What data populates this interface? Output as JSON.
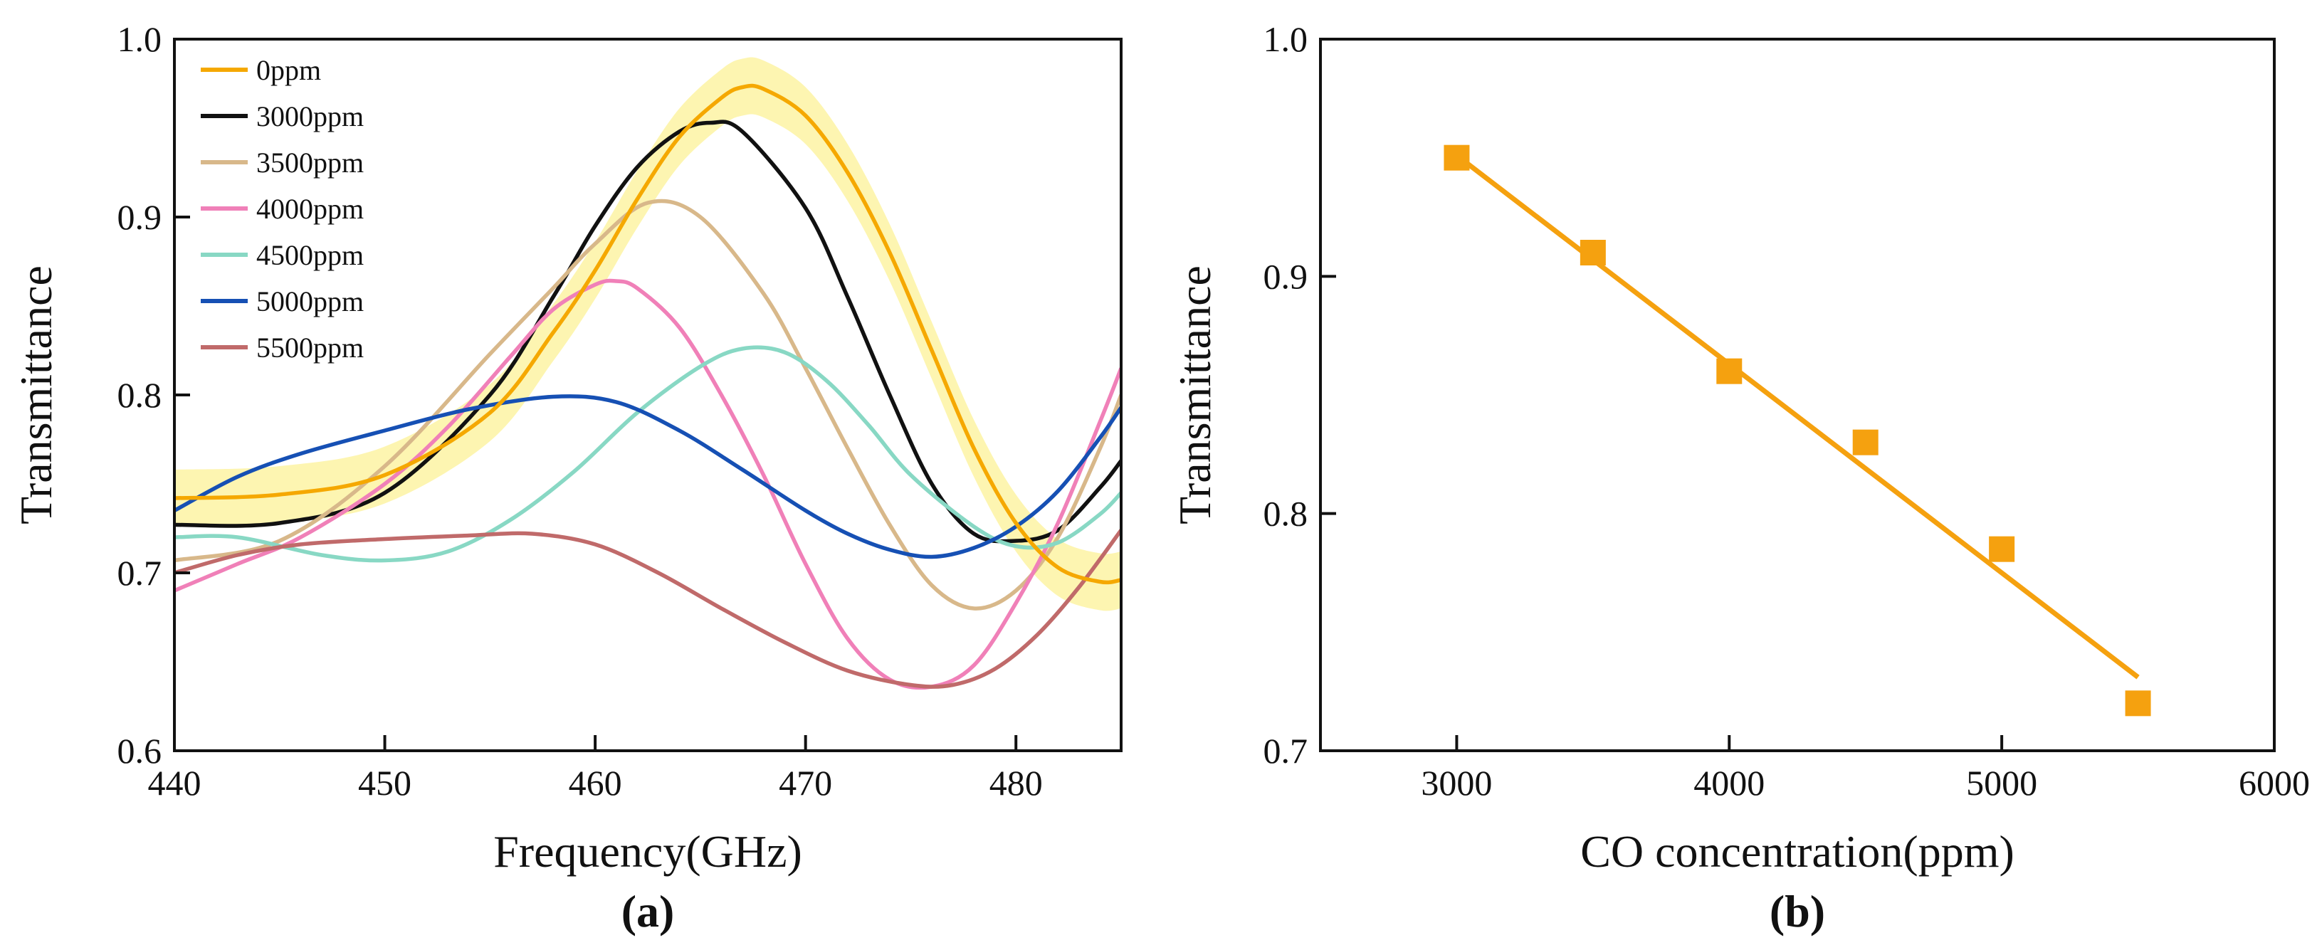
{
  "chart_data": [
    {
      "type": "line",
      "panel_label": "(a)",
      "xlabel": "Frequency(GHz)",
      "ylabel": "Transmittance",
      "xlim": [
        440,
        485
      ],
      "ylim": [
        0.6,
        1.0
      ],
      "xticks": [
        440,
        450,
        460,
        470,
        480
      ],
      "xtick_labels": [
        "440",
        "450",
        "460",
        "470",
        "480"
      ],
      "yticks": [
        0.6,
        0.7,
        0.8,
        0.9,
        1.0
      ],
      "ytick_labels": [
        "0.6",
        "0.7",
        "0.8",
        "0.9",
        "1.0"
      ],
      "legend_position": "top-left",
      "highlight_band": {
        "series": "0ppm",
        "halfwidth": 0.016,
        "color": "#fdf3a3"
      },
      "series": [
        {
          "name": "0ppm",
          "color": "#f5a800",
          "x": [
            440,
            445,
            450,
            455,
            458,
            460,
            462,
            464,
            466,
            467,
            468,
            470,
            472,
            474,
            476,
            478,
            480,
            482,
            484,
            485
          ],
          "y": [
            0.742,
            0.744,
            0.755,
            0.79,
            0.835,
            0.87,
            0.91,
            0.945,
            0.967,
            0.973,
            0.972,
            0.957,
            0.925,
            0.88,
            0.825,
            0.77,
            0.728,
            0.703,
            0.695,
            0.696
          ]
        },
        {
          "name": "3000ppm",
          "color": "#111111",
          "x": [
            440,
            445,
            450,
            455,
            458,
            460,
            462,
            464,
            465.5,
            467,
            470,
            472,
            474,
            476,
            478,
            480,
            482,
            484,
            485
          ],
          "y": [
            0.727,
            0.728,
            0.745,
            0.8,
            0.855,
            0.895,
            0.928,
            0.948,
            0.953,
            0.948,
            0.905,
            0.855,
            0.8,
            0.75,
            0.722,
            0.718,
            0.724,
            0.748,
            0.763
          ]
        },
        {
          "name": "3500ppm",
          "color": "#d8b88a",
          "x": [
            440,
            445,
            450,
            455,
            458,
            460,
            462.5,
            465,
            468,
            470,
            472,
            474,
            476,
            478,
            480,
            482,
            484,
            485
          ],
          "y": [
            0.707,
            0.718,
            0.76,
            0.823,
            0.86,
            0.885,
            0.908,
            0.9,
            0.857,
            0.815,
            0.77,
            0.727,
            0.693,
            0.68,
            0.69,
            0.72,
            0.77,
            0.8
          ]
        },
        {
          "name": "4000ppm",
          "color": "#f080b8",
          "x": [
            440,
            443,
            446,
            450,
            453,
            456,
            458,
            460,
            461,
            462,
            464,
            466,
            468,
            470,
            472,
            474,
            476,
            478,
            480,
            482,
            484,
            485
          ],
          "y": [
            0.69,
            0.705,
            0.72,
            0.75,
            0.782,
            0.822,
            0.848,
            0.862,
            0.864,
            0.86,
            0.838,
            0.8,
            0.755,
            0.705,
            0.663,
            0.64,
            0.636,
            0.648,
            0.683,
            0.728,
            0.785,
            0.815
          ]
        },
        {
          "name": "4500ppm",
          "color": "#88d8c4",
          "x": [
            440,
            443,
            447,
            450,
            453,
            456,
            459,
            462,
            465,
            467,
            469,
            471,
            473,
            475,
            478,
            480,
            482,
            484,
            485
          ],
          "y": [
            0.72,
            0.72,
            0.71,
            0.707,
            0.712,
            0.73,
            0.757,
            0.79,
            0.816,
            0.826,
            0.824,
            0.808,
            0.783,
            0.755,
            0.726,
            0.715,
            0.717,
            0.733,
            0.745
          ]
        },
        {
          "name": "5000ppm",
          "color": "#1650b4",
          "x": [
            440,
            443,
            446,
            450,
            454,
            458,
            461,
            464,
            467,
            470,
            472,
            474,
            476,
            478,
            480,
            482,
            484,
            485
          ],
          "y": [
            0.735,
            0.754,
            0.767,
            0.78,
            0.792,
            0.799,
            0.796,
            0.78,
            0.758,
            0.735,
            0.722,
            0.713,
            0.709,
            0.714,
            0.726,
            0.746,
            0.776,
            0.793
          ]
        },
        {
          "name": "5500ppm",
          "color": "#c06a6a",
          "x": [
            440,
            443,
            446,
            450,
            454,
            457,
            460,
            463,
            466,
            469,
            472,
            475,
            477,
            479,
            481,
            483,
            485
          ],
          "y": [
            0.7,
            0.71,
            0.716,
            0.719,
            0.721,
            0.722,
            0.716,
            0.7,
            0.68,
            0.661,
            0.645,
            0.637,
            0.637,
            0.646,
            0.665,
            0.692,
            0.724
          ]
        }
      ]
    },
    {
      "type": "scatter",
      "panel_label": "(b)",
      "xlabel": "CO concentration(ppm)",
      "ylabel": "Transmittance",
      "xlim": [
        2500,
        6000
      ],
      "ylim": [
        0.7,
        1.0
      ],
      "xticks": [
        3000,
        4000,
        5000,
        6000
      ],
      "xtick_labels": [
        "3000",
        "4000",
        "5000",
        "6000"
      ],
      "yticks": [
        0.7,
        0.8,
        0.9,
        1.0
      ],
      "ytick_labels": [
        "0.7",
        "0.8",
        "0.9",
        "1.0"
      ],
      "color": "#f5a10f",
      "points": {
        "x": [
          3000,
          3500,
          4000,
          4500,
          5000,
          5500
        ],
        "y": [
          0.95,
          0.91,
          0.86,
          0.83,
          0.785,
          0.72
        ]
      },
      "fit_line": {
        "x": [
          3000,
          5500
        ],
        "y": [
          0.951,
          0.731
        ]
      }
    }
  ]
}
